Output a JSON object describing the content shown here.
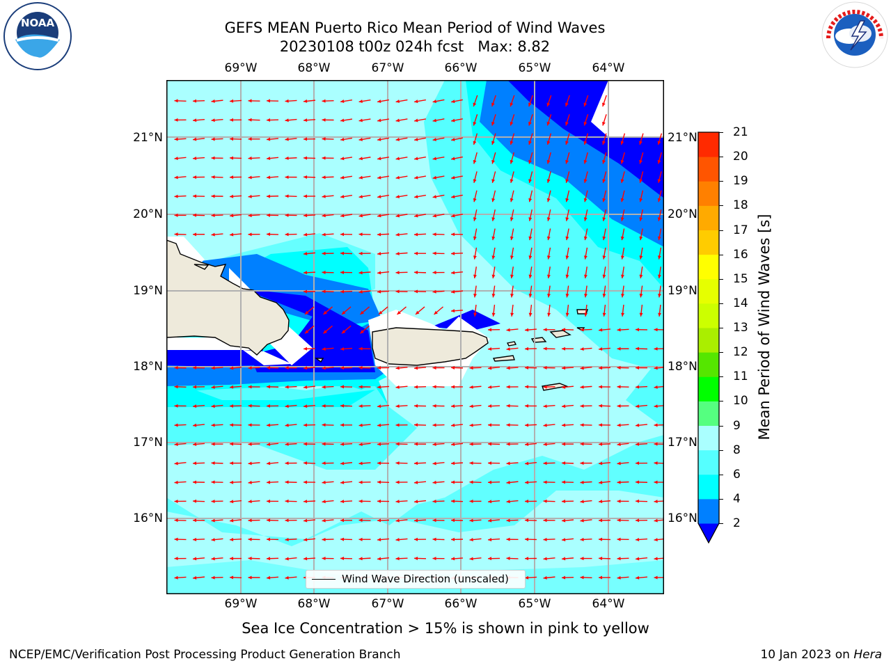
{
  "title": {
    "line1": "GEFS MEAN Puerto Rico Mean Period of Wind Waves",
    "line2": "20230108 t00z 024h fcst   Max: 8.82"
  },
  "logos": {
    "left": {
      "name": "noaa-logo",
      "text": "NOAA"
    },
    "right": {
      "name": "nws-logo",
      "text": "NATIONAL WEATHER SERVICE"
    }
  },
  "map": {
    "lon_ticks": [
      "69°W",
      "68°W",
      "67°W",
      "66°W",
      "65°W",
      "64°W"
    ],
    "lat_ticks": [
      "21°N",
      "20°N",
      "19°N",
      "18°N",
      "17°N",
      "16°N"
    ],
    "legend_label": "Wind Wave Direction (unscaled)",
    "arrow_color": "#ff0000",
    "land_color": "#eeeadb"
  },
  "colorbar": {
    "label": "Mean Period of Wind Waves [s]",
    "ticks": [
      "2",
      "4",
      "6",
      "8",
      "9",
      "10",
      "11",
      "12",
      "13",
      "14",
      "15",
      "16",
      "17",
      "18",
      "19",
      "20",
      "21"
    ],
    "colors": [
      "#0000ff",
      "#0080ff",
      "#00ffff",
      "#55ffff",
      "#aaffff",
      "#55ff80",
      "#00ff00",
      "#55e600",
      "#aaee00",
      "#ccff00",
      "#e6ff00",
      "#ffff00",
      "#ffcc00",
      "#ffaa00",
      "#ff8000",
      "#ff5500",
      "#ff2a00",
      "#ff0000"
    ]
  },
  "caption": "Sea Ice Concentration > 15% is shown in pink to yellow",
  "footer": {
    "left": "NCEP/EMC/Verification Post Processing Product Generation Branch",
    "right_date": "10 Jan 2023 on ",
    "right_host": "Hera"
  }
}
